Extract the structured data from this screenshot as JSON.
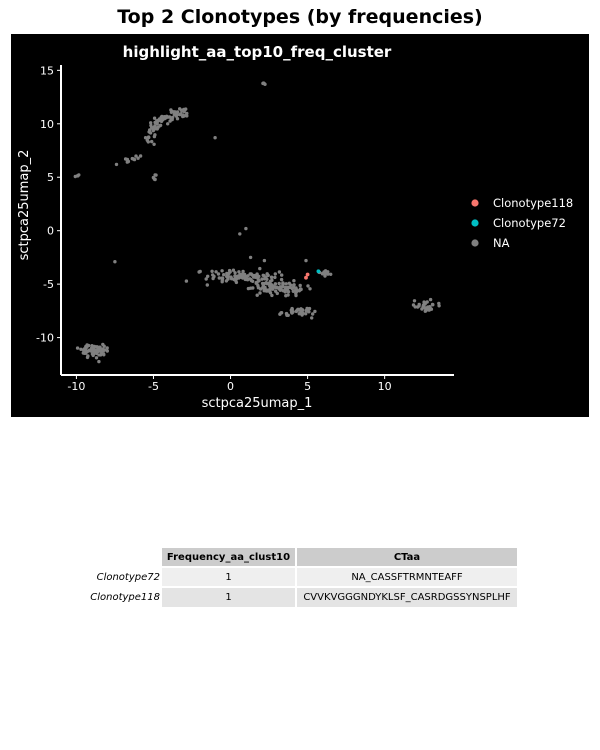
{
  "page_title": "Top 2 Clonotypes (by frequencies)",
  "chart_data": {
    "type": "scatter",
    "title": "highlight_aa_top10_freq_cluster",
    "xlabel": "sctpca25umap_1",
    "ylabel": "sctpca25umap_2",
    "xlim": [
      -11,
      14.5
    ],
    "ylim": [
      -13.5,
      15.5
    ],
    "xticks": [
      -10,
      -5,
      0,
      5,
      10
    ],
    "xtick_labels": [
      "-10",
      "-5",
      "0",
      "5",
      "10"
    ],
    "yticks": [
      -10,
      -5,
      0,
      5,
      10,
      15
    ],
    "ytick_labels": [
      "-10",
      "-5",
      "0",
      "5",
      "10",
      "15"
    ],
    "background": "#000000",
    "grid": false,
    "legend_position": "right",
    "series": [
      {
        "name": "Clonotype118",
        "color": "#F8766D",
        "points": [
          [
            4.9,
            -4.4
          ],
          [
            5.0,
            -4.1
          ]
        ]
      },
      {
        "name": "Clonotype72",
        "color": "#00BFC4",
        "points": [
          [
            5.7,
            -3.8
          ]
        ]
      },
      {
        "name": "NA",
        "color": "#808080",
        "points": [],
        "clusters": [
          {
            "cx": -4.0,
            "cy": 9.8,
            "path": [
              [
                -5.5,
                8.2
              ],
              [
                -5.0,
                9.6
              ],
              [
                -4.5,
                10.4
              ],
              [
                -3.5,
                10.9
              ],
              [
                -3.0,
                11.1
              ]
            ],
            "n": 90,
            "spread": 0.25
          },
          {
            "cx": -8.8,
            "cy": -11.2,
            "rx": 0.9,
            "ry": 0.5,
            "n": 70
          },
          {
            "cx": 12.7,
            "cy": -7.1,
            "rx": 0.6,
            "ry": 0.4,
            "n": 30
          },
          {
            "cx": 0.8,
            "cy": -4.3,
            "rx": 1.8,
            "ry": 0.45,
            "n": 110
          },
          {
            "cx": 2.6,
            "cy": -5.3,
            "rx": 1.3,
            "ry": 0.6,
            "n": 70
          },
          {
            "cx": 4.2,
            "cy": -7.6,
            "rx": 1.0,
            "ry": 0.35,
            "n": 40
          },
          {
            "cx": 4.0,
            "cy": -5.4,
            "rx": 0.7,
            "ry": 0.5,
            "n": 25
          },
          {
            "cx": 6.1,
            "cy": -3.9,
            "rx": 0.35,
            "ry": 0.2,
            "n": 12
          },
          {
            "cx": -7.0,
            "cy": 6.7,
            "path": [
              [
                -6.8,
                6.5
              ],
              [
                -6.2,
                6.8
              ],
              [
                -5.8,
                7.0
              ]
            ],
            "n": 10,
            "spread": 0.12
          },
          {
            "cx": -4.9,
            "cy": 5.0,
            "rx": 0.08,
            "ry": 0.25,
            "n": 6
          },
          {
            "cx": -9.9,
            "cy": 5.1,
            "rx": 0.15,
            "ry": 0.08,
            "n": 4
          },
          {
            "cx": 2.2,
            "cy": 13.8,
            "rx": 0.15,
            "ry": 0.1,
            "n": 4
          }
        ],
        "singletons": [
          [
            -7.4,
            6.2
          ],
          [
            -1.0,
            8.7
          ],
          [
            1.0,
            0.2
          ],
          [
            0.6,
            -0.3
          ],
          [
            -7.5,
            -2.9
          ],
          [
            2.2,
            -2.8
          ],
          [
            4.9,
            -2.8
          ],
          [
            1.3,
            -2.5
          ]
        ]
      }
    ]
  },
  "table": {
    "columns": [
      "Frequency_aa_clust10",
      "CTaa"
    ],
    "rows": [
      {
        "label": "Clonotype72",
        "cells": [
          "1",
          "NA_CASSFTRMNTEAFF"
        ]
      },
      {
        "label": "Clonotype118",
        "cells": [
          "1",
          "CVVKVGGGNDYKLSF_CASRDGSSYNSPLHF"
        ]
      }
    ]
  }
}
